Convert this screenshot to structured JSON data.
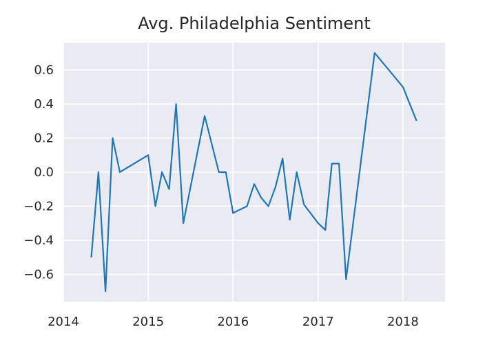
{
  "chart_data": {
    "type": "line",
    "title": "Avg. Philadelphia Sentiment",
    "xlabel": "",
    "ylabel": "",
    "x_ticks": [
      "2014",
      "2015",
      "2016",
      "2017",
      "2018"
    ],
    "y_ticks": [
      "0.6",
      "0.4",
      "0.2",
      "0.0",
      "−0.2",
      "−0.4",
      "−0.6"
    ],
    "xlim": [
      "2014-01-01",
      "2018-07-01"
    ],
    "ylim": [
      -0.76,
      0.76
    ],
    "grid": true,
    "background": "#eaeaf2",
    "line_color": "#1f77b4",
    "series": [
      {
        "x": [
          "2014-05-01",
          "2014-06-01",
          "2014-07-01",
          "2014-08-01",
          "2014-09-01",
          "2015-01-01",
          "2015-02-01",
          "2015-03-01",
          "2015-04-01",
          "2015-05-01",
          "2015-06-01",
          "2015-09-01",
          "2015-11-01",
          "2015-12-01",
          "2016-01-01",
          "2016-03-01",
          "2016-04-01",
          "2016-05-01",
          "2016-06-01",
          "2016-07-01",
          "2016-08-01",
          "2016-09-01",
          "2016-10-01",
          "2016-11-01",
          "2017-01-01",
          "2017-02-01",
          "2017-03-01",
          "2017-04-01",
          "2017-05-01",
          "2017-09-01",
          "2018-01-01",
          "2018-03-01"
        ],
        "y": [
          -0.5,
          0.0,
          -0.7,
          0.2,
          0.0,
          0.1,
          -0.2,
          0.0,
          -0.1,
          0.4,
          -0.3,
          0.33,
          0.0,
          0.0,
          -0.24,
          -0.2,
          -0.07,
          -0.15,
          -0.2,
          -0.09,
          0.08,
          -0.28,
          0.0,
          -0.19,
          -0.3,
          -0.34,
          0.05,
          0.05,
          -0.63,
          0.7,
          0.5,
          0.3
        ]
      }
    ]
  }
}
